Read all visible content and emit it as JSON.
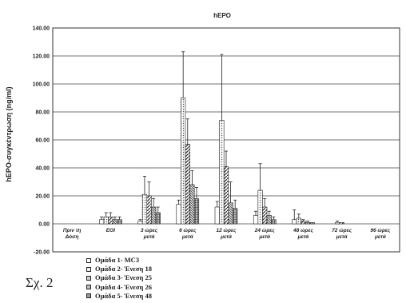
{
  "chart_data": {
    "type": "bar",
    "title": "hEPO",
    "ylabel": "hEPO-συγκέντρωση (ng/ml)",
    "xlabel": "",
    "ylim": [
      -20,
      140
    ],
    "yticks": [
      "-20.00",
      "0.00",
      "20.00",
      "40.00",
      "60.00",
      "80.00",
      "100.00",
      "120.00",
      "140.00"
    ],
    "grid": true,
    "legend_position": "bottom-left",
    "categories": [
      [
        "Πριν τη",
        "Δόση"
      ],
      [
        "EOI"
      ],
      [
        "3 ώρες",
        "μετά"
      ],
      [
        "6 ώρες",
        "μετά"
      ],
      [
        "12 ώρες",
        "μετά"
      ],
      [
        "24 ώρες",
        "μετά"
      ],
      [
        "48 ώρες",
        "μετά"
      ],
      [
        "72 ώρες",
        "μετά"
      ],
      [
        "96 ώρες",
        "μετά"
      ]
    ],
    "series": [
      {
        "name": "Ομάδα 1- MC3",
        "pattern": "plain",
        "values": [
          0,
          3,
          2,
          14,
          12,
          6,
          3,
          0,
          0
        ],
        "errors": [
          0,
          2,
          1,
          3,
          4,
          3,
          7,
          0,
          0
        ]
      },
      {
        "name": "Ομάδα 2- Ένεση 18",
        "pattern": "dots",
        "values": [
          0,
          5,
          21,
          90,
          74,
          24,
          4,
          1,
          0
        ],
        "errors": [
          0,
          3,
          13,
          33,
          47,
          19,
          3,
          1,
          0
        ]
      },
      {
        "name": "Ομάδα 3- Ένεση 25",
        "pattern": "diag",
        "values": [
          0,
          5,
          20,
          57,
          41,
          12,
          2,
          1,
          0
        ],
        "errors": [
          0,
          3,
          10,
          18,
          11,
          6,
          1,
          0,
          0
        ]
      },
      {
        "name": "Ομάδα 4- Ένεση 26",
        "pattern": "hatch",
        "values": [
          0,
          3,
          12,
          28,
          15,
          6,
          1,
          0,
          0
        ],
        "errors": [
          0,
          2,
          6,
          10,
          15,
          3,
          1,
          0,
          0
        ]
      },
      {
        "name": "Ομάδα 5- Ένεση 48",
        "pattern": "grid",
        "values": [
          0,
          3,
          8,
          18,
          11,
          3,
          1,
          0,
          0
        ],
        "errors": [
          0,
          2,
          4,
          8,
          6,
          2,
          0,
          0,
          0
        ]
      }
    ]
  },
  "caption": "Σχ. 2"
}
